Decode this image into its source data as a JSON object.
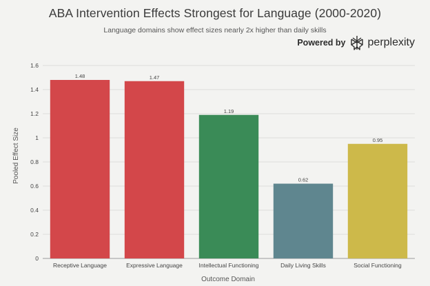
{
  "header": {
    "title": "ABA Intervention Effects Strongest for Language (2000-2020)",
    "subtitle": "Language domains show effect sizes nearly 2x higher than daily skills"
  },
  "brand": {
    "prefix": "Powered by",
    "name": "perplexity",
    "icon": "perplexity-logo-icon"
  },
  "chart_data": {
    "type": "bar",
    "title": "ABA Intervention Effects Strongest for Language (2000-2020)",
    "subtitle": "Language domains show effect sizes nearly 2x higher than daily skills",
    "xlabel": "Outcome Domain",
    "ylabel": "Pooled Effect Size",
    "ylim": [
      0,
      1.6
    ],
    "yticks": [
      0,
      0.2,
      0.4,
      0.6,
      0.8,
      1,
      1.2,
      1.4,
      1.6
    ],
    "ytick_labels": [
      "0",
      "0.2",
      "0.4",
      "0.6",
      "0.8",
      "1",
      "1.2",
      "1.4",
      "1.6"
    ],
    "grid": true,
    "categories": [
      "Receptive Language",
      "Expressive Language",
      "Intellectual Functioning",
      "Daily Living Skills",
      "Social Functioning"
    ],
    "values": [
      1.48,
      1.47,
      1.19,
      0.62,
      0.95
    ],
    "value_labels": [
      "1.48",
      "1.47",
      "1.19",
      "0.62",
      "0.95"
    ],
    "colors": [
      "#d3474a",
      "#d3474a",
      "#3a8b57",
      "#5f868f",
      "#cdb94a"
    ]
  }
}
